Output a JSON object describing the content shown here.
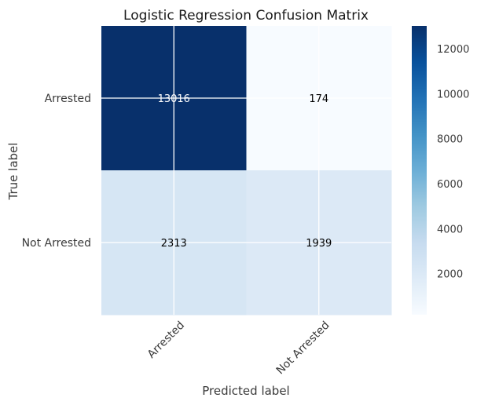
{
  "chart_data": {
    "type": "heatmap",
    "title": "Logistic Regression Confusion Matrix",
    "xlabel": "Predicted label",
    "ylabel": "True label",
    "x_categories": [
      "Arrested",
      "Not Arrested"
    ],
    "y_categories": [
      "Arrested",
      "Not Arrested"
    ],
    "values": [
      [
        13016,
        174
      ],
      [
        2313,
        1939
      ]
    ],
    "colormap": "Blues",
    "vmin": 174,
    "vmax": 13016,
    "colorbar_ticks": [
      2000,
      4000,
      6000,
      8000,
      10000,
      12000
    ],
    "colorbar_tick_labels": [
      "2000",
      "4000",
      "6000",
      "8000",
      "10000",
      "12000"
    ],
    "grid": true,
    "annotation_threshold": 6595,
    "annotation_colors": {
      "light": "#ffffff",
      "dark": "#000000"
    }
  }
}
